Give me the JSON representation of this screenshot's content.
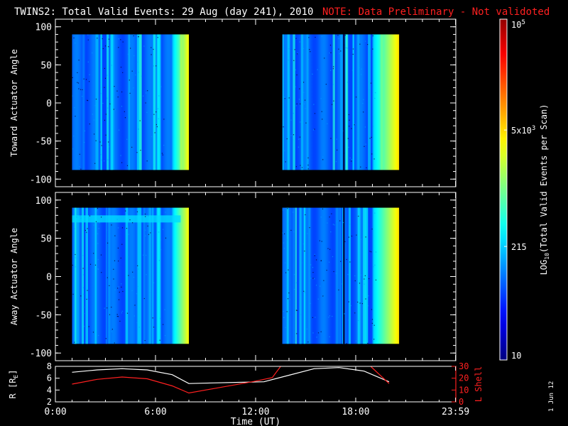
{
  "header": {
    "title": "TWINS2: Total Valid Events: 29 Aug (day 241), 2010",
    "note": "NOTE: Data Preliminary - Not validoted"
  },
  "colors": {
    "background": "#000000",
    "note": "#ff2020",
    "lshell": "#ff2020",
    "radius": "#ffffff",
    "colormap_low": "#00008c",
    "colormap_high": "#ff0000"
  },
  "colorbar": {
    "label": "LOG10(Total Valid Events per Scan)",
    "label_parts": {
      "base": "LOG",
      "sub": "10",
      "rest": "(Total Valid Events per Scan)"
    },
    "ticks": [
      {
        "value": 10,
        "label": "10"
      },
      {
        "value": 215,
        "label": "215"
      },
      {
        "value": 5000,
        "label": "5x10",
        "sup": "3"
      },
      {
        "value": 100000,
        "label": "10",
        "sup": "5"
      }
    ],
    "range": [
      10,
      100000
    ],
    "scale": "log"
  },
  "xaxis": {
    "label": "Time (UT)",
    "range_hours": [
      0,
      24
    ],
    "ticks": [
      {
        "value": 0,
        "label": "0:00"
      },
      {
        "value": 6,
        "label": "6:00"
      },
      {
        "value": 12,
        "label": "12:00"
      },
      {
        "value": 18,
        "label": "18:00"
      },
      {
        "value": 23.983,
        "label": "23:59"
      }
    ]
  },
  "chart_data": [
    {
      "type": "heatmap",
      "ylabel": "Toward Actuator Angle",
      "ylim": [
        -110,
        110
      ],
      "yticks": [
        -100,
        -50,
        0,
        50,
        100
      ],
      "angle_range": [
        -88,
        90
      ],
      "blocks": [
        {
          "start_hour": 1.0,
          "end_hour": 8.0
        },
        {
          "start_hour": 13.6,
          "end_hour": 20.6
        }
      ]
    },
    {
      "type": "heatmap",
      "ylabel": "Away Actuator Angle",
      "ylim": [
        -110,
        110
      ],
      "yticks": [
        -100,
        -50,
        0,
        50,
        100
      ],
      "angle_range": [
        -88,
        90
      ],
      "blocks": [
        {
          "start_hour": 1.0,
          "end_hour": 8.0
        },
        {
          "start_hour": 13.6,
          "end_hour": 20.6
        }
      ]
    },
    {
      "type": "line",
      "ylabel_left": "R [RE]",
      "ylabel_left_parts": {
        "base": "R [R",
        "sub": "E",
        "rest": "]"
      },
      "ylabel_right": "L Shell",
      "ylim_left": [
        2,
        8
      ],
      "yticks_left": [
        2,
        4,
        6,
        8
      ],
      "ylim_right": [
        0,
        30
      ],
      "yticks_right": [
        0,
        10,
        20,
        30
      ],
      "series": [
        {
          "axis": "left",
          "x": [
            1.0,
            2.5,
            4.0,
            5.5,
            7.0,
            8.0,
            9.5,
            11.0,
            12.5,
            14.0,
            15.5,
            17.0,
            18.5,
            20.0
          ],
          "y": [
            7.0,
            7.4,
            7.6,
            7.4,
            6.6,
            5.1,
            5.2,
            5.3,
            5.4,
            6.5,
            7.6,
            7.8,
            7.2,
            5.4
          ]
        },
        {
          "axis": "right",
          "x": [
            1.0,
            2.5,
            4.0,
            5.5,
            7.0,
            8.0,
            10.0,
            12.0,
            13.0,
            13.5
          ],
          "y": [
            15.0,
            19.0,
            21.0,
            19.5,
            13.5,
            7.5,
            12.5,
            17.5,
            20.5,
            30.0
          ]
        },
        {
          "axis": "right",
          "x": [
            18.9,
            19.5,
            20.0
          ],
          "y": [
            30.0,
            22.0,
            15.5
          ]
        }
      ]
    }
  ],
  "footer": {
    "date_stamp": "1 Jun 12"
  }
}
